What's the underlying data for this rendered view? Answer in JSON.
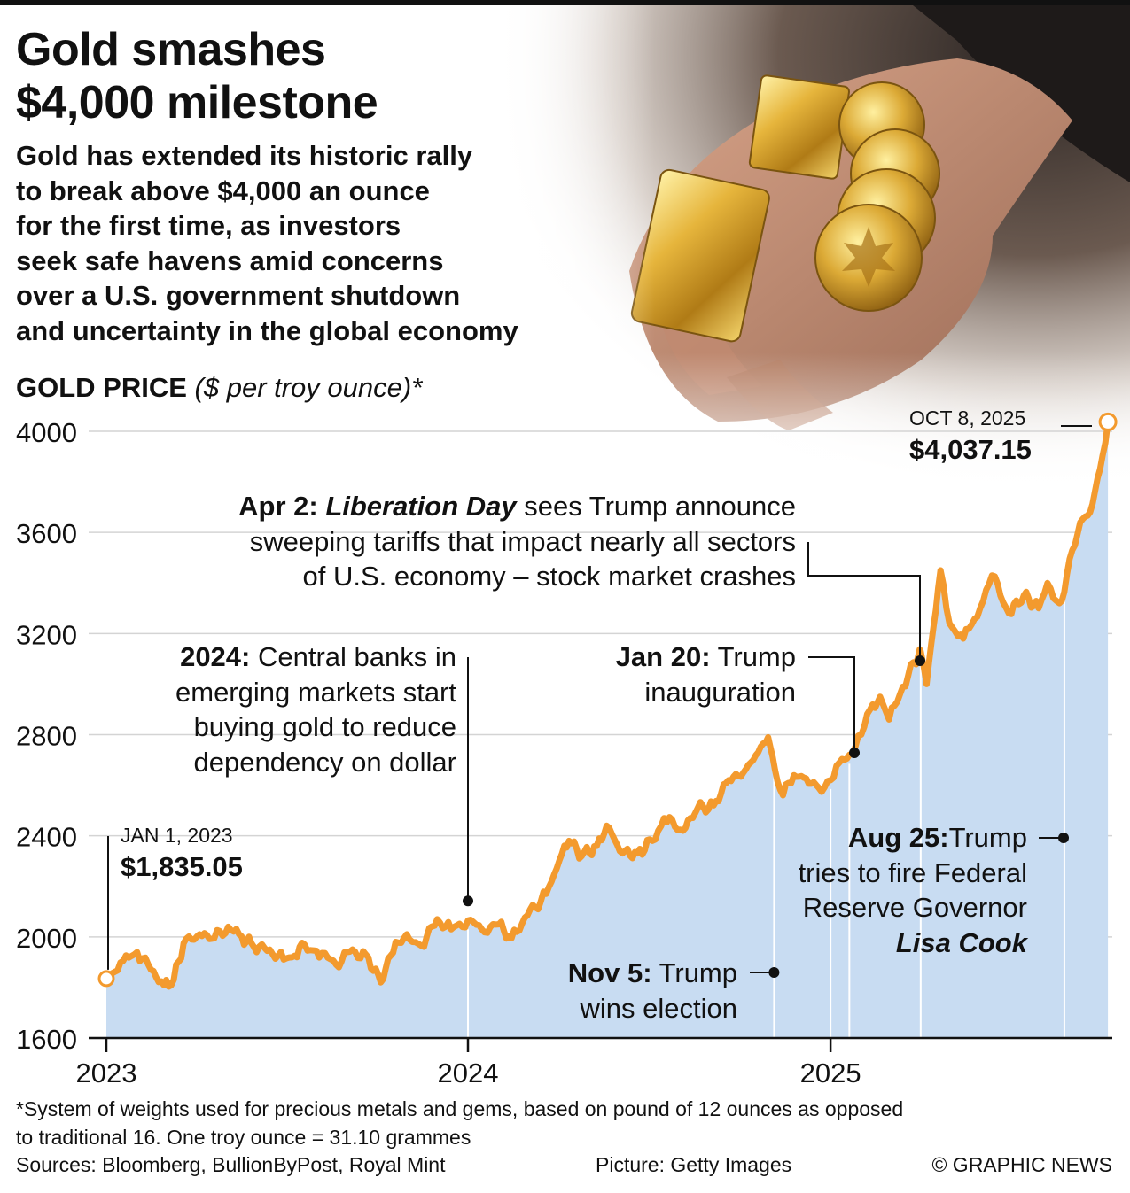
{
  "headline": [
    "Gold smashes",
    "$4,000 milestone"
  ],
  "intro": [
    "Gold has extended its historic rally",
    "to break above $4,000 an ounce",
    "for the first time, as investors",
    "seek safe havens amid concerns",
    "over a U.S. government shutdown",
    "and uncertainty in the global economy"
  ],
  "chart_title": {
    "main": "GOLD PRICE",
    "unit": "($ per troy ounce)*"
  },
  "chart_data": {
    "type": "area",
    "title": "GOLD PRICE ($ per troy ounce)*",
    "xlabel": "",
    "ylabel": "",
    "xlim": [
      "2023-01-01",
      "2025-10-08"
    ],
    "ylim": [
      1600,
      4100
    ],
    "yticks": [
      1600,
      2000,
      2400,
      2800,
      3200,
      3600,
      4000
    ],
    "xticks": [
      {
        "date": "2023-01-01",
        "label": "2023"
      },
      {
        "date": "2024-01-01",
        "label": "2024"
      },
      {
        "date": "2025-01-01",
        "label": "2025"
      }
    ],
    "grid": true,
    "colors": {
      "line": "#f39a2e",
      "area": "#c8dcf2",
      "grid": "#d4d4d4"
    },
    "series": [
      {
        "values": [
          [
            "2023-01-01",
            1835
          ],
          [
            "2023-01-18",
            1905
          ],
          [
            "2023-02-01",
            1940
          ],
          [
            "2023-02-15",
            1870
          ],
          [
            "2023-02-28",
            1810
          ],
          [
            "2023-03-10",
            1830
          ],
          [
            "2023-03-20",
            1975
          ],
          [
            "2023-04-05",
            2010
          ],
          [
            "2023-04-20",
            1995
          ],
          [
            "2023-05-04",
            2040
          ],
          [
            "2023-05-15",
            2010
          ],
          [
            "2023-05-30",
            1960
          ],
          [
            "2023-06-15",
            1950
          ],
          [
            "2023-06-29",
            1910
          ],
          [
            "2023-07-10",
            1925
          ],
          [
            "2023-07-20",
            1970
          ],
          [
            "2023-08-01",
            1945
          ],
          [
            "2023-08-21",
            1890
          ],
          [
            "2023-09-01",
            1940
          ],
          [
            "2023-09-20",
            1930
          ],
          [
            "2023-10-05",
            1820
          ],
          [
            "2023-10-20",
            1980
          ],
          [
            "2023-11-03",
            1990
          ],
          [
            "2023-11-15",
            1965
          ],
          [
            "2023-12-01",
            2070
          ],
          [
            "2023-12-15",
            2030
          ],
          [
            "2024-01-01",
            2065
          ],
          [
            "2024-01-15",
            2030
          ],
          [
            "2024-02-01",
            2050
          ],
          [
            "2024-02-14",
            1995
          ],
          [
            "2024-03-01",
            2085
          ],
          [
            "2024-03-20",
            2170
          ],
          [
            "2024-04-05",
            2330
          ],
          [
            "2024-04-12",
            2380
          ],
          [
            "2024-04-25",
            2320
          ],
          [
            "2024-05-10",
            2360
          ],
          [
            "2024-05-20",
            2440
          ],
          [
            "2024-06-05",
            2330
          ],
          [
            "2024-06-20",
            2330
          ],
          [
            "2024-07-05",
            2380
          ],
          [
            "2024-07-17",
            2470
          ],
          [
            "2024-08-05",
            2420
          ],
          [
            "2024-08-20",
            2510
          ],
          [
            "2024-09-05",
            2520
          ],
          [
            "2024-09-20",
            2620
          ],
          [
            "2024-10-05",
            2650
          ],
          [
            "2024-10-20",
            2730
          ],
          [
            "2024-10-30",
            2790
          ],
          [
            "2024-11-06",
            2660
          ],
          [
            "2024-11-14",
            2560
          ],
          [
            "2024-11-25",
            2640
          ],
          [
            "2024-12-05",
            2630
          ],
          [
            "2024-12-20",
            2590
          ],
          [
            "2025-01-01",
            2620
          ],
          [
            "2025-01-10",
            2690
          ],
          [
            "2025-01-20",
            2720
          ],
          [
            "2025-02-01",
            2800
          ],
          [
            "2025-02-10",
            2900
          ],
          [
            "2025-02-20",
            2950
          ],
          [
            "2025-03-01",
            2860
          ],
          [
            "2025-03-15",
            2990
          ],
          [
            "2025-03-31",
            3120
          ],
          [
            "2025-04-02",
            3130
          ],
          [
            "2025-04-08",
            3000
          ],
          [
            "2025-04-15",
            3230
          ],
          [
            "2025-04-22",
            3450
          ],
          [
            "2025-05-01",
            3240
          ],
          [
            "2025-05-15",
            3180
          ],
          [
            "2025-06-01",
            3300
          ],
          [
            "2025-06-13",
            3430
          ],
          [
            "2025-06-30",
            3280
          ],
          [
            "2025-07-15",
            3350
          ],
          [
            "2025-07-30",
            3300
          ],
          [
            "2025-08-08",
            3400
          ],
          [
            "2025-08-20",
            3320
          ],
          [
            "2025-08-25",
            3365
          ],
          [
            "2025-09-02",
            3530
          ],
          [
            "2025-09-10",
            3640
          ],
          [
            "2025-09-20",
            3680
          ],
          [
            "2025-09-30",
            3850
          ],
          [
            "2025-10-08",
            4037.15
          ]
        ]
      }
    ],
    "start": {
      "label": "JAN 1, 2023",
      "price": "$1,835.05",
      "date": "2023-01-01",
      "value": 1835.05
    },
    "end": {
      "label": "OCT 8, 2025",
      "price": "$4,037.15",
      "date": "2025-10-08",
      "value": 4037.15
    },
    "events": [
      {
        "date": "2024-01-01",
        "value": 2065
      },
      {
        "date": "2024-11-05",
        "value": 2680
      },
      {
        "date": "2025-01-20",
        "value": 2720
      },
      {
        "date": "2025-04-02",
        "value": 3130
      },
      {
        "date": "2025-08-25",
        "value": 3365
      }
    ]
  },
  "annotations": {
    "cb2024": {
      "bold": "2024:",
      "lines": [
        " Central banks in",
        "emerging markets start",
        "buying gold to reduce",
        "dependency on dollar"
      ]
    },
    "liberation": {
      "bold": "Apr 2: ",
      "italic": "Liberation Day",
      "lines": [
        " sees Trump announce",
        "sweeping tariffs that impact nearly all sectors",
        "of U.S. economy – stock market crashes"
      ]
    },
    "jan20": {
      "bold": "Jan 20:",
      "lines": [
        " Trump",
        "inauguration"
      ]
    },
    "nov5": {
      "bold": "Nov 5:",
      "lines": [
        " Trump",
        "wins election"
      ]
    },
    "aug25": {
      "bold": "Aug 25:",
      "lines": [
        "Trump",
        "tries to fire Federal",
        "Reserve Governor"
      ],
      "bold_italic": "Lisa Cook"
    }
  },
  "footer": {
    "note": [
      "*System of weights used for precious metals and gems, based on pound of 12 ounces as opposed",
      "to traditional 16. One troy ounce = 31.10 grammes"
    ],
    "sources": "Sources: Bloomberg, BullionByPost, Royal Mint",
    "picture": "Picture: Getty Images",
    "credit": "© GRAPHIC NEWS"
  }
}
